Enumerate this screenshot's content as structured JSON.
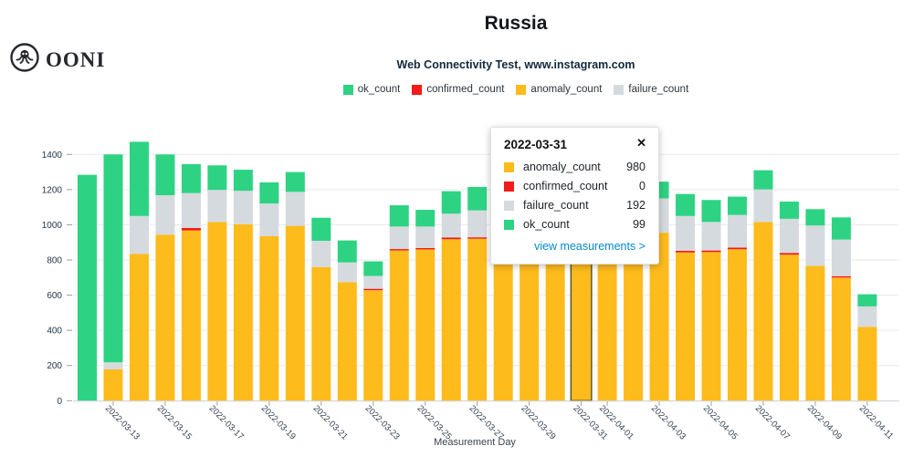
{
  "header": {
    "logo_text": "OONI",
    "title": "Russia",
    "subtitle": "Web Connectivity Test, www.instagram.com"
  },
  "colors": {
    "ok_count": "#2dd383",
    "confirmed_count": "#f31a1a",
    "anomaly_count": "#fdbb1c",
    "failure_count": "#d5dadf",
    "link": "#0588cb",
    "selected_outline": "#60531a"
  },
  "legend": [
    {
      "label": "ok_count"
    },
    {
      "label": "confirmed_count"
    },
    {
      "label": "anomaly_count"
    },
    {
      "label": "failure_count"
    }
  ],
  "tooltip": {
    "date": "2022-03-31",
    "close": "✕",
    "rows": [
      {
        "label": "anomaly_count",
        "value": "980"
      },
      {
        "label": "confirmed_count",
        "value": "0"
      },
      {
        "label": "failure_count",
        "value": "192"
      },
      {
        "label": "ok_count",
        "value": "99"
      }
    ],
    "link": "view measurements >"
  },
  "chart_data": {
    "type": "bar",
    "stacked": true,
    "title": "Russia",
    "subtitle": "Web Connectivity Test, www.instagram.com",
    "xlabel": "Measurement Day",
    "ylabel": "",
    "ylim": [
      0,
      1400
    ],
    "yticks": [
      0,
      200,
      400,
      600,
      800,
      1000,
      1200,
      1400
    ],
    "grid": true,
    "legend_position": "top",
    "categories": [
      "2022-03-12",
      "2022-03-13",
      "2022-03-14",
      "2022-03-15",
      "2022-03-16",
      "2022-03-17",
      "2022-03-18",
      "2022-03-19",
      "2022-03-20",
      "2022-03-21",
      "2022-03-22",
      "2022-03-23",
      "2022-03-24",
      "2022-03-25",
      "2022-03-26",
      "2022-03-27",
      "2022-03-28",
      "2022-03-29",
      "2022-03-30",
      "2022-03-31",
      "2022-04-01",
      "2022-04-02",
      "2022-04-03",
      "2022-04-04",
      "2022-04-05",
      "2022-04-06",
      "2022-04-07",
      "2022-04-08",
      "2022-04-09",
      "2022-04-10",
      "2022-04-11"
    ],
    "xticks": [
      "2022-03-13",
      "2022-03-15",
      "2022-03-17",
      "2022-03-19",
      "2022-03-21",
      "2022-03-23",
      "2022-03-25",
      "2022-03-27",
      "2022-03-29",
      "2022-03-31",
      "2022-04-01",
      "2022-04-03",
      "2022-04-05",
      "2022-04-07",
      "2022-04-09",
      "2022-04-11"
    ],
    "stack_order_bottom_to_top": [
      "anomaly_count",
      "confirmed_count",
      "failure_count",
      "ok_count"
    ],
    "selected_category": "2022-03-31",
    "series": [
      {
        "name": "anomaly_count",
        "color": "#fdbb1c",
        "values": [
          0,
          178,
          835,
          944,
          968,
          1016,
          1003,
          935,
          994,
          760,
          674,
          628,
          854,
          860,
          918,
          921,
          940,
          950,
          965,
          980,
          970,
          960,
          955,
          843,
          845,
          861,
          1016,
          830,
          766,
          700,
          420
        ]
      },
      {
        "name": "confirmed_count",
        "color": "#f31a1a",
        "values": [
          0,
          0,
          0,
          0,
          14,
          0,
          0,
          0,
          0,
          0,
          0,
          8,
          8,
          8,
          10,
          8,
          0,
          0,
          0,
          0,
          0,
          0,
          0,
          9,
          9,
          9,
          0,
          10,
          0,
          8,
          0
        ]
      },
      {
        "name": "failure_count",
        "color": "#d5dadf",
        "values": [
          0,
          40,
          215,
          224,
          198,
          182,
          190,
          186,
          193,
          149,
          112,
          73,
          128,
          122,
          135,
          153,
          160,
          170,
          180,
          192,
          190,
          195,
          195,
          198,
          162,
          186,
          185,
          194,
          230,
          208,
          116
        ]
      },
      {
        "name": "ok_count",
        "color": "#2dd383",
        "values": [
          1284,
          1182,
          422,
          232,
          165,
          140,
          120,
          120,
          113,
          131,
          125,
          83,
          121,
          95,
          128,
          133,
          110,
          105,
          100,
          99,
          95,
          90,
          95,
          125,
          125,
          104,
          109,
          98,
          93,
          126,
          69
        ]
      }
    ]
  }
}
